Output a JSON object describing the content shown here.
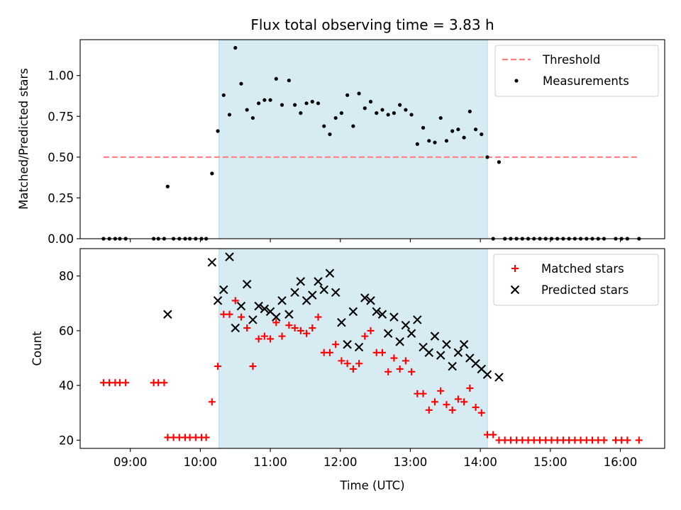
{
  "chart_data": [
    {
      "type": "scatter",
      "title": "Flux total observing time = 3.83 h",
      "ylabel": "Matched/Predicted stars",
      "xlabel": "",
      "xlim": [
        "08:17",
        "16:38"
      ],
      "ylim": [
        0.0,
        1.22
      ],
      "yticks": [
        "0.00",
        "0.25",
        "0.50",
        "0.75",
        "1.00"
      ],
      "xticks": [
        "09:00",
        "10:00",
        "11:00",
        "12:00",
        "13:00",
        "14:00",
        "15:00",
        "16:00"
      ],
      "observing_window": [
        "10:16",
        "14:06"
      ],
      "threshold": {
        "name": "Threshold",
        "value": 0.5,
        "x_range": [
          "08:37",
          "16:16"
        ],
        "color": "#ff7f7f"
      },
      "series": [
        {
          "name": "Measurements",
          "color": "#000000",
          "marker": "dot",
          "points": [
            [
              "08:37",
              0.0
            ],
            [
              "08:42",
              0.0
            ],
            [
              "08:47",
              0.0
            ],
            [
              "08:51",
              0.0
            ],
            [
              "08:56",
              0.0
            ],
            [
              "09:20",
              0.0
            ],
            [
              "09:24",
              0.0
            ],
            [
              "09:29",
              0.0
            ],
            [
              "09:32",
              0.32
            ],
            [
              "09:37",
              0.0
            ],
            [
              "09:42",
              0.0
            ],
            [
              "09:47",
              0.0
            ],
            [
              "09:51",
              0.0
            ],
            [
              "09:56",
              0.0
            ],
            [
              "10:01",
              0.0
            ],
            [
              "10:05",
              0.0
            ],
            [
              "10:10",
              0.4
            ],
            [
              "10:15",
              0.66
            ],
            [
              "10:20",
              0.88
            ],
            [
              "10:25",
              0.76
            ],
            [
              "10:30",
              1.17
            ],
            [
              "10:35",
              0.95
            ],
            [
              "10:40",
              0.79
            ],
            [
              "10:45",
              0.74
            ],
            [
              "10:50",
              0.83
            ],
            [
              "10:55",
              0.85
            ],
            [
              "11:00",
              0.85
            ],
            [
              "11:05",
              0.98
            ],
            [
              "11:10",
              0.82
            ],
            [
              "11:16",
              0.97
            ],
            [
              "11:21",
              0.82
            ],
            [
              "11:26",
              0.77
            ],
            [
              "11:31",
              0.83
            ],
            [
              "11:36",
              0.84
            ],
            [
              "11:41",
              0.83
            ],
            [
              "11:46",
              0.69
            ],
            [
              "11:51",
              0.64
            ],
            [
              "11:56",
              0.74
            ],
            [
              "12:01",
              0.77
            ],
            [
              "12:06",
              0.88
            ],
            [
              "12:11",
              0.69
            ],
            [
              "12:16",
              0.89
            ],
            [
              "12:21",
              0.8
            ],
            [
              "12:26",
              0.84
            ],
            [
              "12:31",
              0.77
            ],
            [
              "12:36",
              0.79
            ],
            [
              "12:41",
              0.76
            ],
            [
              "12:46",
              0.77
            ],
            [
              "12:51",
              0.82
            ],
            [
              "12:56",
              0.79
            ],
            [
              "13:01",
              0.76
            ],
            [
              "13:06",
              0.58
            ],
            [
              "13:11",
              0.68
            ],
            [
              "13:16",
              0.6
            ],
            [
              "13:21",
              0.59
            ],
            [
              "13:26",
              0.74
            ],
            [
              "13:31",
              0.6
            ],
            [
              "13:36",
              0.66
            ],
            [
              "13:41",
              0.67
            ],
            [
              "13:46",
              0.62
            ],
            [
              "13:51",
              0.78
            ],
            [
              "13:56",
              0.67
            ],
            [
              "14:01",
              0.64
            ],
            [
              "14:06",
              0.5
            ],
            [
              "14:11",
              0.0
            ],
            [
              "14:16",
              0.47
            ],
            [
              "14:21",
              0.0
            ],
            [
              "14:26",
              0.0
            ],
            [
              "14:31",
              0.0
            ],
            [
              "14:36",
              0.0
            ],
            [
              "14:41",
              0.0
            ],
            [
              "14:46",
              0.0
            ],
            [
              "14:51",
              0.0
            ],
            [
              "14:56",
              0.0
            ],
            [
              "15:01",
              0.0
            ],
            [
              "15:06",
              0.0
            ],
            [
              "15:11",
              0.0
            ],
            [
              "15:16",
              0.0
            ],
            [
              "15:21",
              0.0
            ],
            [
              "15:26",
              0.0
            ],
            [
              "15:31",
              0.0
            ],
            [
              "15:36",
              0.0
            ],
            [
              "15:41",
              0.0
            ],
            [
              "15:46",
              0.0
            ],
            [
              "15:56",
              0.0
            ],
            [
              "16:01",
              0.0
            ],
            [
              "16:06",
              0.0
            ],
            [
              "16:16",
              0.0
            ]
          ]
        }
      ],
      "legend": {
        "placement": "top-right",
        "entries": [
          "Threshold",
          "Measurements"
        ]
      }
    },
    {
      "type": "scatter",
      "title": "",
      "ylabel": "Count",
      "xlabel": "Time (UTC)",
      "xlim": [
        "08:17",
        "16:38"
      ],
      "ylim": [
        17.0,
        90.0
      ],
      "yticks": [
        "20",
        "40",
        "60",
        "80"
      ],
      "xticks": [
        "09:00",
        "10:00",
        "11:00",
        "12:00",
        "13:00",
        "14:00",
        "15:00",
        "16:00"
      ],
      "observing_window": [
        "10:16",
        "14:06"
      ],
      "series": [
        {
          "name": "Matched stars",
          "color": "#ff0000",
          "marker": "plus",
          "points": [
            [
              "08:37",
              41
            ],
            [
              "08:42",
              41
            ],
            [
              "08:47",
              41
            ],
            [
              "08:51",
              41
            ],
            [
              "08:56",
              41
            ],
            [
              "09:20",
              41
            ],
            [
              "09:24",
              41
            ],
            [
              "09:29",
              41
            ],
            [
              "09:32",
              21
            ],
            [
              "09:37",
              21
            ],
            [
              "09:42",
              21
            ],
            [
              "09:47",
              21
            ],
            [
              "09:51",
              21
            ],
            [
              "09:56",
              21
            ],
            [
              "10:01",
              21
            ],
            [
              "10:05",
              21
            ],
            [
              "10:10",
              34
            ],
            [
              "10:15",
              47
            ],
            [
              "10:20",
              66
            ],
            [
              "10:25",
              66
            ],
            [
              "10:30",
              71
            ],
            [
              "10:35",
              65
            ],
            [
              "10:40",
              61
            ],
            [
              "10:45",
              47
            ],
            [
              "10:50",
              57
            ],
            [
              "10:55",
              58
            ],
            [
              "11:00",
              57
            ],
            [
              "11:05",
              63
            ],
            [
              "11:10",
              58
            ],
            [
              "11:16",
              62
            ],
            [
              "11:21",
              61
            ],
            [
              "11:26",
              60
            ],
            [
              "11:31",
              59
            ],
            [
              "11:36",
              61
            ],
            [
              "11:41",
              65
            ],
            [
              "11:46",
              52
            ],
            [
              "11:51",
              52
            ],
            [
              "11:56",
              55
            ],
            [
              "12:01",
              49
            ],
            [
              "12:06",
              48
            ],
            [
              "12:11",
              46
            ],
            [
              "12:16",
              48
            ],
            [
              "12:21",
              58
            ],
            [
              "12:26",
              60
            ],
            [
              "12:31",
              52
            ],
            [
              "12:36",
              52
            ],
            [
              "12:41",
              45
            ],
            [
              "12:46",
              50
            ],
            [
              "12:51",
              46
            ],
            [
              "12:56",
              49
            ],
            [
              "13:01",
              45
            ],
            [
              "13:06",
              37
            ],
            [
              "13:11",
              37
            ],
            [
              "13:16",
              31
            ],
            [
              "13:21",
              34
            ],
            [
              "13:26",
              38
            ],
            [
              "13:31",
              33
            ],
            [
              "13:36",
              31
            ],
            [
              "13:41",
              35
            ],
            [
              "13:46",
              34
            ],
            [
              "13:51",
              39
            ],
            [
              "13:56",
              32
            ],
            [
              "14:01",
              30
            ],
            [
              "14:06",
              22
            ],
            [
              "14:11",
              22
            ],
            [
              "14:16",
              20
            ],
            [
              "14:21",
              20
            ],
            [
              "14:26",
              20
            ],
            [
              "14:31",
              20
            ],
            [
              "14:36",
              20
            ],
            [
              "14:41",
              20
            ],
            [
              "14:46",
              20
            ],
            [
              "14:51",
              20
            ],
            [
              "14:56",
              20
            ],
            [
              "15:01",
              20
            ],
            [
              "15:06",
              20
            ],
            [
              "15:11",
              20
            ],
            [
              "15:16",
              20
            ],
            [
              "15:21",
              20
            ],
            [
              "15:26",
              20
            ],
            [
              "15:31",
              20
            ],
            [
              "15:36",
              20
            ],
            [
              "15:41",
              20
            ],
            [
              "15:46",
              20
            ],
            [
              "15:56",
              20
            ],
            [
              "16:01",
              20
            ],
            [
              "16:06",
              20
            ],
            [
              "16:16",
              20
            ]
          ]
        },
        {
          "name": "Predicted stars",
          "color": "#000000",
          "marker": "x",
          "points": [
            [
              "09:32",
              66
            ],
            [
              "10:10",
              85
            ],
            [
              "10:15",
              71
            ],
            [
              "10:20",
              75
            ],
            [
              "10:25",
              87
            ],
            [
              "10:30",
              61
            ],
            [
              "10:35",
              69
            ],
            [
              "10:40",
              77
            ],
            [
              "10:45",
              64
            ],
            [
              "10:50",
              69
            ],
            [
              "10:55",
              68
            ],
            [
              "11:00",
              67
            ],
            [
              "11:05",
              65
            ],
            [
              "11:10",
              71
            ],
            [
              "11:16",
              66
            ],
            [
              "11:21",
              74
            ],
            [
              "11:26",
              78
            ],
            [
              "11:31",
              71
            ],
            [
              "11:36",
              73
            ],
            [
              "11:41",
              78
            ],
            [
              "11:46",
              75
            ],
            [
              "11:51",
              81
            ],
            [
              "11:56",
              74
            ],
            [
              "12:01",
              63
            ],
            [
              "12:06",
              55
            ],
            [
              "12:11",
              67
            ],
            [
              "12:16",
              54
            ],
            [
              "12:21",
              72
            ],
            [
              "12:26",
              71
            ],
            [
              "12:31",
              67
            ],
            [
              "12:36",
              66
            ],
            [
              "12:41",
              59
            ],
            [
              "12:46",
              65
            ],
            [
              "12:51",
              56
            ],
            [
              "12:56",
              62
            ],
            [
              "13:01",
              59
            ],
            [
              "13:06",
              64
            ],
            [
              "13:11",
              54
            ],
            [
              "13:16",
              52
            ],
            [
              "13:21",
              58
            ],
            [
              "13:26",
              51
            ],
            [
              "13:31",
              55
            ],
            [
              "13:36",
              47
            ],
            [
              "13:41",
              52
            ],
            [
              "13:46",
              55
            ],
            [
              "13:51",
              50
            ],
            [
              "13:56",
              48
            ],
            [
              "14:01",
              46
            ],
            [
              "14:06",
              44
            ],
            [
              "14:16",
              43
            ]
          ]
        }
      ],
      "legend": {
        "placement": "top-right",
        "entries": [
          "Matched stars",
          "Predicted stars"
        ]
      }
    }
  ]
}
